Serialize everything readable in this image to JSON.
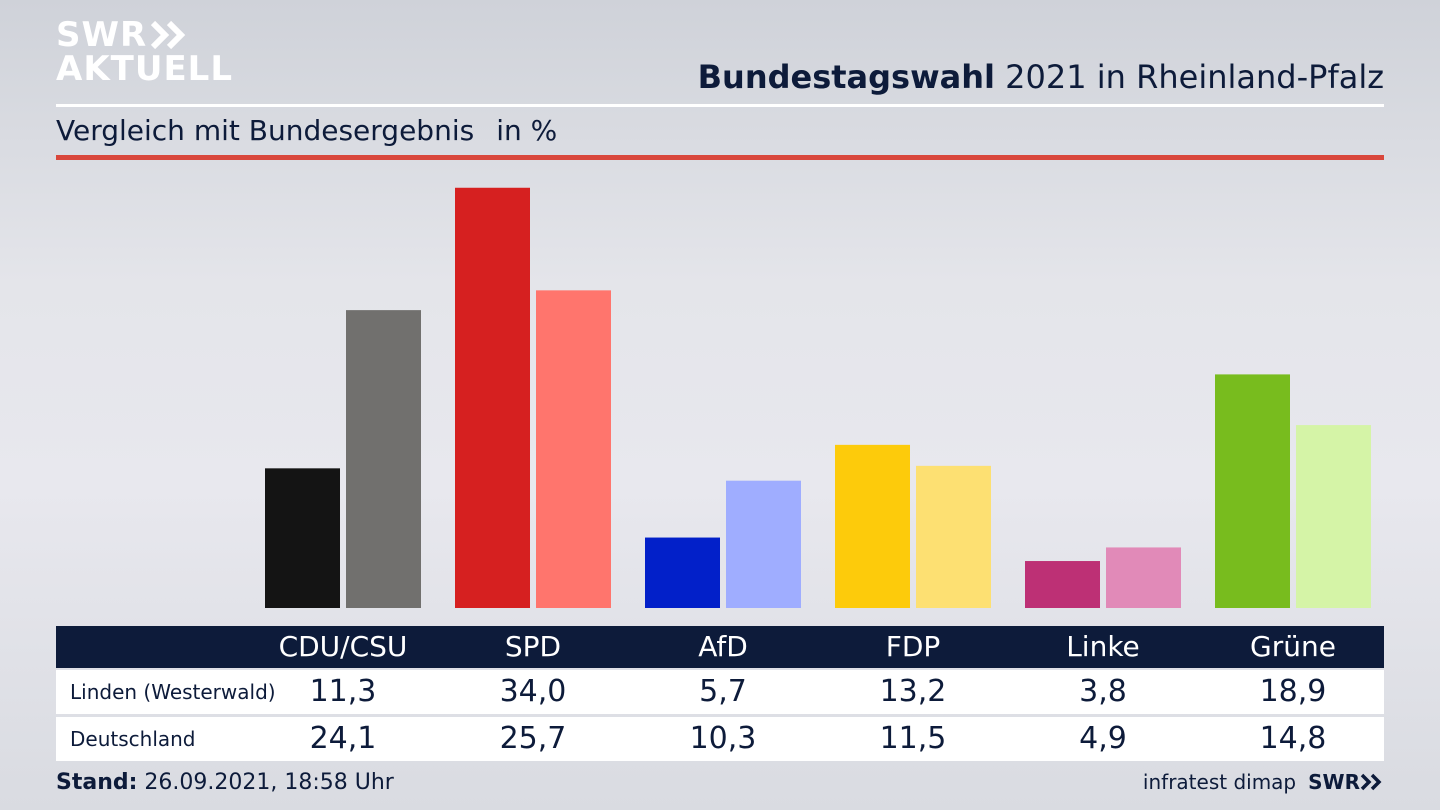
{
  "brand": {
    "logo_line1": "SWR",
    "logo_line2": "AKTUELL",
    "footer_logo": "SWR"
  },
  "header": {
    "title_bold": "Bundestagswahl",
    "title_rest": "2021 in Rheinland-Pfalz",
    "subtitle": "Vergleich mit Bundesergebnis",
    "unit": "in %"
  },
  "colors": {
    "navy": "#0d1b3a",
    "accent_red": "#d9473c",
    "parties": [
      {
        "dark": "#141414",
        "light": "#71706e"
      },
      {
        "dark": "#d62020",
        "light": "#ff756d"
      },
      {
        "dark": "#0220c9",
        "light": "#9fadff"
      },
      {
        "dark": "#fdcb0b",
        "light": "#fde072"
      },
      {
        "dark": "#bd3075",
        "light": "#e18ab8"
      },
      {
        "dark": "#78bc1e",
        "light": "#d5f4a7"
      }
    ]
  },
  "chart_data": {
    "type": "bar",
    "categories": [
      "CDU/CSU",
      "SPD",
      "AfD",
      "FDP",
      "Linke",
      "Grüne"
    ],
    "series": [
      {
        "name": "Linden (Westerwald)",
        "values": [
          "11,3",
          "34,0",
          "5,7",
          "13,2",
          "3,8",
          "18,9"
        ]
      },
      {
        "name": "Deutschland",
        "values": [
          "24,1",
          "25,7",
          "10,3",
          "11,5",
          "4,9",
          "14,8"
        ]
      }
    ]
  },
  "footer": {
    "stand_label": "Stand:",
    "stand_value": "26.09.2021, 18:58 Uhr",
    "source": "infratest dimap"
  }
}
